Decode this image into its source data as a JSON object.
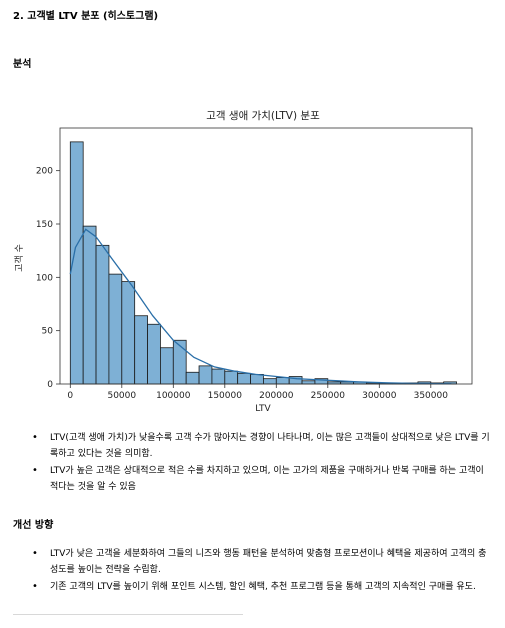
{
  "section_title": "2. 고객별 LTV 분포 (히스토그램)",
  "analysis_heading": "분석",
  "analysis_bullets": [
    "LTV(고객 생애 가치)가 낮을수록 고객 수가 많아지는 경향이 나타나며, 이는 많은 고객들이 상대적으로 낮은 LTV를 기록하고 있다는 것을 의미함.",
    "LTV가 높은 고객은 상대적으로 적은 수를 차지하고 있으며, 이는 고가의 제품을 구매하거나 반복 구매를 하는 고객이 적다는 것을 알 수 있음"
  ],
  "improvement_heading": "개선 방향",
  "improvement_bullets": [
    "LTV가 낮은 고객을 세분화하여 그들의 니즈와 행동 패턴을 분석하여 맞춤형 프로모션이나 혜택을 제공하여 고객의 충성도를 높이는 전략을 수립함.",
    "기존 고객의 LTV를 높이기 위해 포인트 시스템, 할인 혜택, 추천 프로그램 등을 통해 고객의 지속적인 구매를 유도."
  ],
  "chart_data": {
    "type": "bar",
    "title": "고객 생애 가치(LTV) 분포",
    "xlabel": "LTV",
    "ylabel": "고객 수",
    "xlim": [
      -10000,
      390000
    ],
    "ylim": [
      0,
      240
    ],
    "xticks": [
      0,
      50000,
      100000,
      150000,
      200000,
      250000,
      300000,
      350000
    ],
    "yticks": [
      0,
      50,
      100,
      150,
      200
    ],
    "bin_width": 12500,
    "bin_start": 0,
    "counts": [
      227,
      148,
      130,
      103,
      96,
      64,
      56,
      34,
      41,
      11,
      17,
      14,
      12,
      10,
      9,
      5,
      6,
      7,
      3,
      5,
      2,
      2,
      2,
      1,
      1,
      1,
      1,
      2,
      1,
      2
    ],
    "kde": [
      [
        0,
        103
      ],
      [
        5000,
        128
      ],
      [
        15000,
        145
      ],
      [
        25000,
        138
      ],
      [
        40000,
        118
      ],
      [
        60000,
        92
      ],
      [
        80000,
        64
      ],
      [
        100000,
        41
      ],
      [
        120000,
        25
      ],
      [
        140000,
        16
      ],
      [
        160000,
        12
      ],
      [
        180000,
        9
      ],
      [
        200000,
        7
      ],
      [
        220000,
        5
      ],
      [
        240000,
        4
      ],
      [
        260000,
        3
      ],
      [
        280000,
        2
      ],
      [
        310000,
        1
      ],
      [
        340000,
        0.5
      ],
      [
        370000,
        0.2
      ]
    ],
    "bar_color": "#7eb0d5",
    "bar_edge": "#1a1a1a",
    "kde_color": "#2a6fa8"
  }
}
